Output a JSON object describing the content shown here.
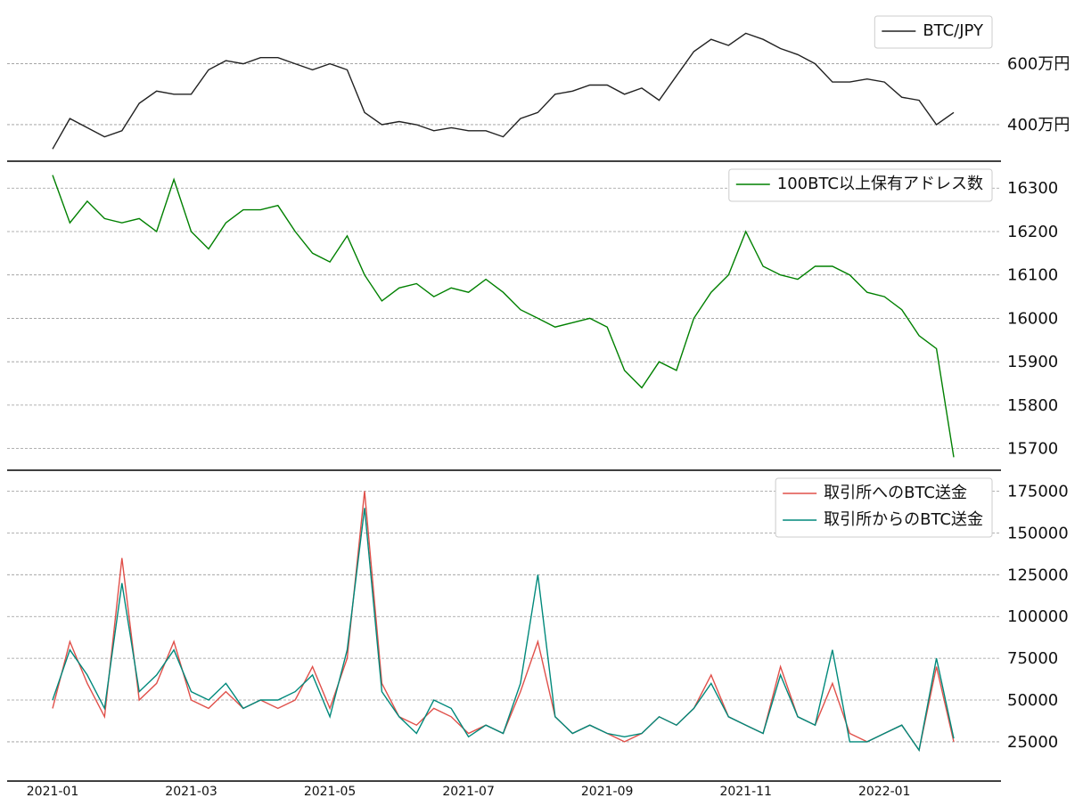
{
  "chart_data": [
    {
      "type": "line",
      "grid": true,
      "legend": "upper right",
      "ylim": [
        2800000,
        7800000
      ],
      "yticks": [
        {
          "value": 4000000,
          "label": "400万円"
        },
        {
          "value": 6000000,
          "label": "600万円"
        }
      ],
      "series": [
        {
          "name": "BTC/JPY",
          "color": "#222222",
          "values": [
            3200000,
            4200000,
            3900000,
            3600000,
            3800000,
            4700000,
            5100000,
            5000000,
            5000000,
            5800000,
            6100000,
            6000000,
            6200000,
            6200000,
            6000000,
            5800000,
            6000000,
            5800000,
            4400000,
            4000000,
            4100000,
            4000000,
            3800000,
            3900000,
            3800000,
            3800000,
            3600000,
            4200000,
            4400000,
            5000000,
            5100000,
            5300000,
            5300000,
            5000000,
            5200000,
            4800000,
            5600000,
            6400000,
            6800000,
            6600000,
            7000000,
            6800000,
            6500000,
            6300000,
            6000000,
            5400000,
            5400000,
            5500000,
            5400000,
            4900000,
            4800000,
            4000000,
            4400000
          ]
        }
      ]
    },
    {
      "type": "line",
      "grid": true,
      "legend": "upper right",
      "ylim": [
        15650,
        16360
      ],
      "yticks": [
        15700,
        15800,
        15900,
        16000,
        16100,
        16200,
        16300
      ],
      "series": [
        {
          "name": "100BTC以上保有アドレス数",
          "color": "#008000",
          "values": [
            16330,
            16220,
            16270,
            16230,
            16220,
            16230,
            16200,
            16320,
            16200,
            16160,
            16220,
            16250,
            16250,
            16260,
            16200,
            16150,
            16130,
            16190,
            16100,
            16040,
            16070,
            16080,
            16050,
            16070,
            16060,
            16090,
            16060,
            16020,
            16000,
            15980,
            15990,
            16000,
            15980,
            15880,
            15840,
            15900,
            15880,
            16000,
            16060,
            16100,
            16200,
            16120,
            16100,
            16090,
            16120,
            16120,
            16100,
            16060,
            16050,
            16020,
            15960,
            15930,
            15680
          ]
        }
      ]
    },
    {
      "type": "line",
      "grid": true,
      "legend": "upper right",
      "ylim": [
        1500,
        187000
      ],
      "yticks": [
        25000,
        50000,
        75000,
        100000,
        125000,
        150000,
        175000
      ],
      "categories": [
        "2021-01",
        null,
        null,
        null,
        null,
        null,
        null,
        null,
        "2021-03",
        null,
        null,
        null,
        null,
        null,
        null,
        null,
        "2021-05",
        null,
        null,
        null,
        null,
        null,
        null,
        null,
        "2021-07",
        null,
        null,
        null,
        null,
        null,
        null,
        null,
        "2021-09",
        null,
        null,
        null,
        null,
        null,
        null,
        null,
        "2021-11",
        null,
        null,
        null,
        null,
        null,
        null,
        null,
        "2022-01",
        null,
        null,
        null,
        null
      ],
      "series": [
        {
          "name": "取引所へのBTC送金",
          "color": "#e0504a",
          "values": [
            45000,
            85000,
            60000,
            40000,
            135000,
            50000,
            60000,
            85000,
            50000,
            45000,
            55000,
            45000,
            50000,
            45000,
            50000,
            70000,
            45000,
            75000,
            175000,
            60000,
            40000,
            35000,
            45000,
            40000,
            30000,
            35000,
            30000,
            55000,
            85000,
            40000,
            30000,
            35000,
            30000,
            25000,
            30000,
            40000,
            35000,
            45000,
            65000,
            40000,
            35000,
            30000,
            70000,
            40000,
            35000,
            60000,
            30000,
            25000,
            30000,
            35000,
            20000,
            70000,
            25000
          ]
        },
        {
          "name": "取引所からのBTC送金",
          "color": "#00897b",
          "values": [
            50000,
            80000,
            65000,
            45000,
            120000,
            55000,
            65000,
            80000,
            55000,
            50000,
            60000,
            45000,
            50000,
            50000,
            55000,
            65000,
            40000,
            80000,
            165000,
            55000,
            40000,
            30000,
            50000,
            45000,
            28000,
            35000,
            30000,
            60000,
            125000,
            40000,
            30000,
            35000,
            30000,
            28000,
            30000,
            40000,
            35000,
            45000,
            60000,
            40000,
            35000,
            30000,
            65000,
            40000,
            35000,
            80000,
            25000,
            25000,
            30000,
            35000,
            20000,
            75000,
            27000
          ]
        }
      ]
    }
  ]
}
